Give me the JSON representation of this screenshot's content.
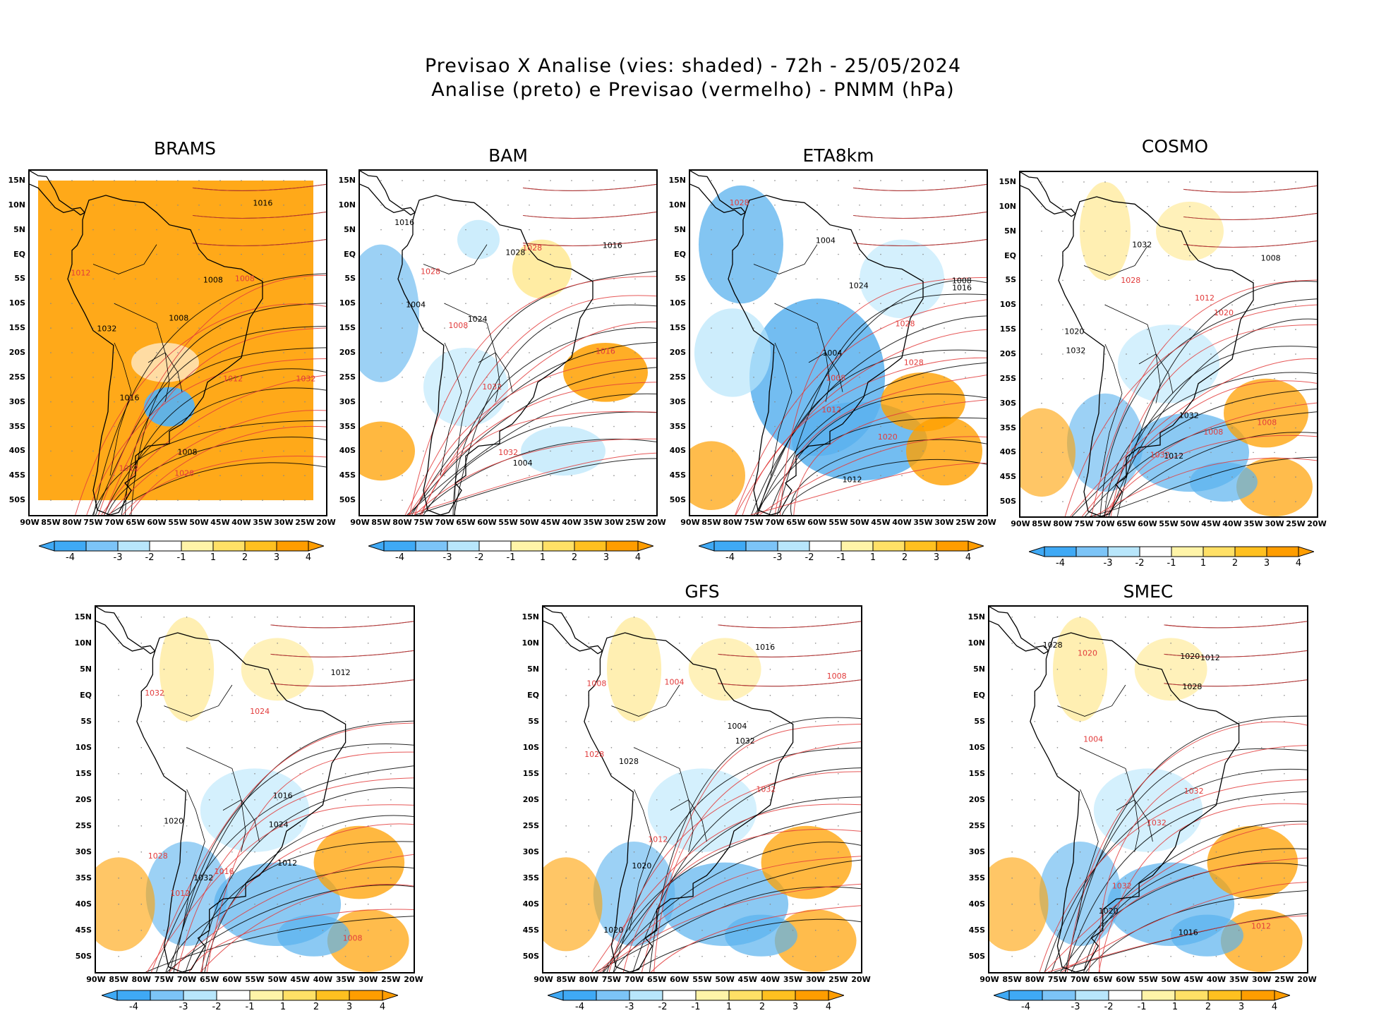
{
  "title": {
    "line1": "Previsao X Analise (vies: shaded) - 72h - 25/05/2024",
    "line2": "Analise (preto) e Previsao (vermelho) - PNMM (hPa)"
  },
  "panels": [
    {
      "name": "BRAMS",
      "label": "BRAMS",
      "bias": "warm-full"
    },
    {
      "name": "BAM",
      "label": "BAM",
      "bias": "mixed-cold-west"
    },
    {
      "name": "ETA8km",
      "label": "ETA8km",
      "bias": "cold-center"
    },
    {
      "name": "COSMO",
      "label": "COSMO",
      "bias": "mixed"
    },
    {
      "name": "unnamed",
      "label": "",
      "bias": "mixed"
    },
    {
      "name": "GFS",
      "label": "GFS",
      "bias": "mixed-warm"
    },
    {
      "name": "SMEC",
      "label": "SMEC",
      "bias": "mixed"
    }
  ],
  "lat_labels": [
    "15N",
    "10N",
    "5N",
    "EQ",
    "5S",
    "10S",
    "15S",
    "20S",
    "25S",
    "30S",
    "35S",
    "40S",
    "45S",
    "50S"
  ],
  "lon_labels": [
    "90W",
    "85W",
    "80W",
    "75W",
    "70W",
    "65W",
    "60W",
    "55W",
    "50W",
    "45W",
    "40W",
    "35W",
    "30W",
    "25W",
    "20W"
  ],
  "colorbar": {
    "labels": [
      "-4",
      "-3",
      "-2",
      "-1",
      "1",
      "2",
      "3",
      "4"
    ],
    "colors": [
      "#3fa9f5",
      "#7cc4f7",
      "#b8e6fb",
      "#ffffff",
      "#fff4a8",
      "#ffe066",
      "#ffc020",
      "#ff9d00"
    ]
  },
  "contour_labels": [
    "1004",
    "1008",
    "1012",
    "1016",
    "1020",
    "1024",
    "1028",
    "1032"
  ],
  "colors": {
    "analysis": "#000000",
    "forecast": "#e23b3b",
    "warm": "#ffa000",
    "cold": "#5ab2ee"
  }
}
